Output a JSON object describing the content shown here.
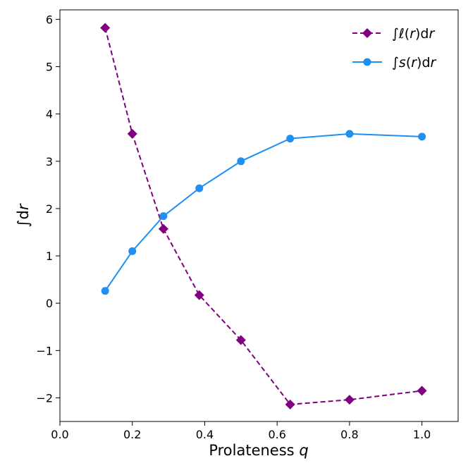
{
  "chart_data": {
    "type": "line",
    "xlabel": "Prolateness",
    "xlabel_var": "q",
    "ylabel_sym": "∫",
    "ylabel_d": "d",
    "ylabel_r": "r",
    "xlim": [
      0.0,
      1.1
    ],
    "ylim": [
      -2.5,
      6.2
    ],
    "xticks": [
      0.0,
      0.2,
      0.4,
      0.6,
      0.8,
      1.0
    ],
    "xtick_labels": [
      "0.0",
      "0.2",
      "0.4",
      "0.6",
      "0.8",
      "1.0"
    ],
    "yticks": [
      -2,
      -1,
      0,
      1,
      2,
      3,
      4,
      5,
      6
    ],
    "ytick_labels": [
      "−2",
      "−1",
      "0",
      "1",
      "2",
      "3",
      "4",
      "5",
      "6"
    ],
    "grid": false,
    "legend_position": "top-right",
    "series": [
      {
        "name": "∫ℓ(r)dr",
        "legend_parts": [
          "∫",
          "ℓ",
          "(",
          "r",
          ")d",
          "r"
        ],
        "color": "#800080",
        "line_style": "dashed",
        "marker": "diamond",
        "x": [
          0.125,
          0.2,
          0.286,
          0.385,
          0.5,
          0.636,
          0.8,
          1.0
        ],
        "y": [
          5.82,
          3.58,
          1.57,
          0.17,
          -0.78,
          -2.14,
          -2.04,
          -1.85
        ]
      },
      {
        "name": "∫s(r)dr",
        "legend_parts": [
          "∫",
          "s",
          "(",
          "r",
          ")d",
          "r"
        ],
        "color": "#1f8ff0",
        "line_style": "solid",
        "marker": "circle",
        "x": [
          0.125,
          0.2,
          0.286,
          0.385,
          0.5,
          0.636,
          0.8,
          1.0
        ],
        "y": [
          0.26,
          1.1,
          1.84,
          2.43,
          3.0,
          3.48,
          3.58,
          3.52
        ]
      }
    ]
  }
}
